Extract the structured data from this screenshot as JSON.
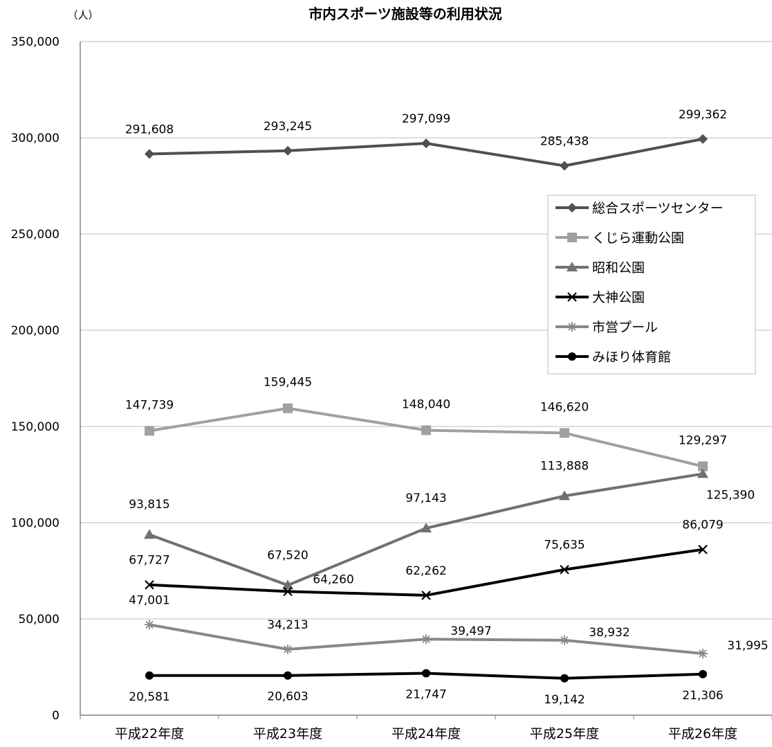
{
  "chart_data": {
    "type": "line",
    "title": "市内スポーツ施設等の利用状況",
    "unit_label": "（人）",
    "categories": [
      "平成22年度",
      "平成23年度",
      "平成24年度",
      "平成25年度",
      "平成26年度"
    ],
    "ylim": [
      0,
      350000
    ],
    "yticks": [
      0,
      50000,
      100000,
      150000,
      200000,
      250000,
      300000,
      350000
    ],
    "ytick_labels": [
      "0",
      "50,000",
      "100,000",
      "150,000",
      "200,000",
      "250,000",
      "300,000",
      "350,000"
    ],
    "grid": true,
    "legend_position": "right",
    "series": [
      {
        "name": "総合スポーツセンター",
        "values": [
          291608,
          293245,
          297099,
          285438,
          299362
        ],
        "labels": [
          "291,608",
          "293,245",
          "297,099",
          "285,438",
          "299,362"
        ],
        "color": "#505050",
        "marker": "diamond"
      },
      {
        "name": "くじら運動公園",
        "values": [
          147739,
          159445,
          148040,
          146620,
          129297
        ],
        "labels": [
          "147,739",
          "159,445",
          "148,040",
          "146,620",
          "129,297"
        ],
        "color": "#a0a0a0",
        "marker": "square"
      },
      {
        "name": "昭和公園",
        "values": [
          93815,
          67520,
          97143,
          113888,
          125390
        ],
        "labels": [
          "93,815",
          "67,520",
          "97,143",
          "113,888",
          "125,390"
        ],
        "color": "#707070",
        "marker": "triangle"
      },
      {
        "name": "大神公園",
        "values": [
          67727,
          64260,
          62262,
          75635,
          86079
        ],
        "labels": [
          "67,727",
          "64,260",
          "62,262",
          "75,635",
          "86,079"
        ],
        "color": "#000000",
        "marker": "x"
      },
      {
        "name": "市営プール",
        "values": [
          47001,
          34213,
          39497,
          38932,
          31995
        ],
        "labels": [
          "47,001",
          "34,213",
          "39,497",
          "38,932",
          "31,995"
        ],
        "color": "#888888",
        "marker": "asterisk"
      },
      {
        "name": "みほり体育館",
        "values": [
          20581,
          20603,
          21747,
          19142,
          21306
        ],
        "labels": [
          "20,581",
          "20,603",
          "21,747",
          "19,142",
          "21,306"
        ],
        "color": "#000000",
        "marker": "circle"
      }
    ]
  }
}
